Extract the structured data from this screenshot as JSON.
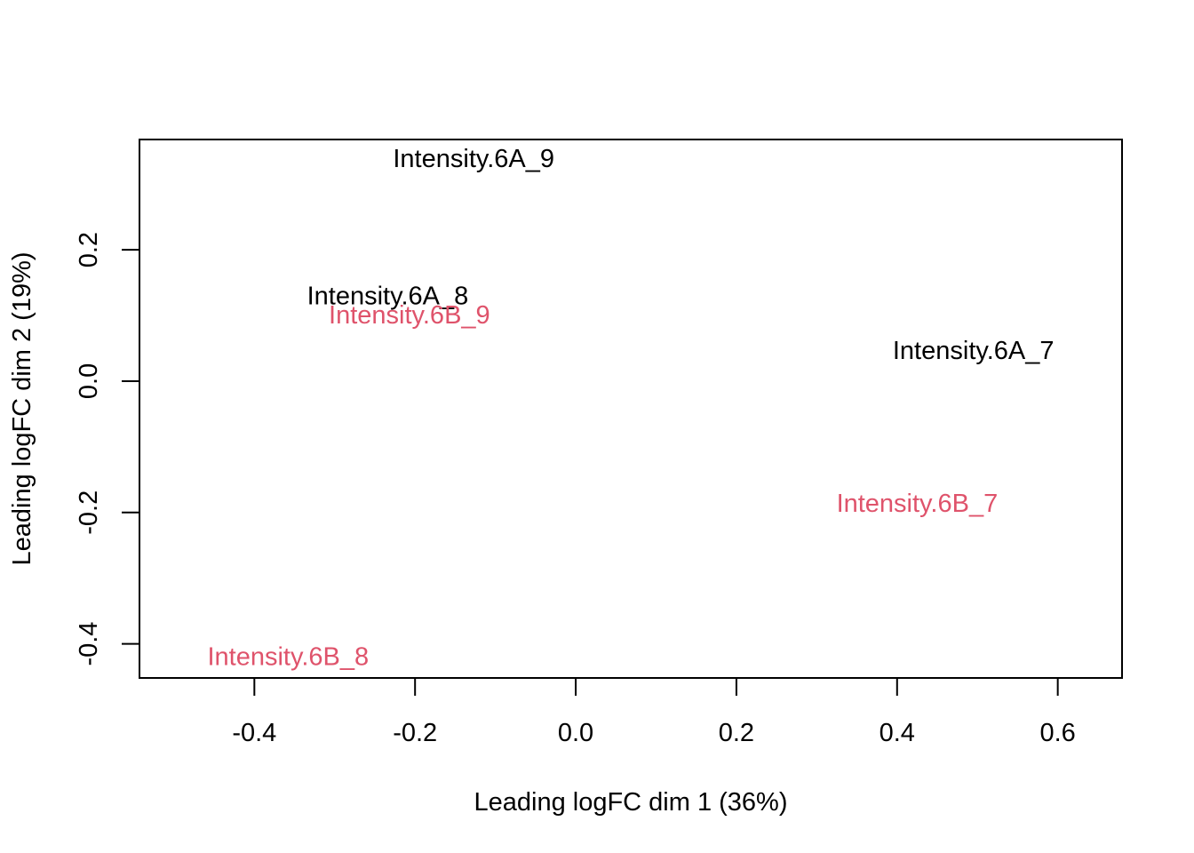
{
  "chart_data": {
    "type": "scatter",
    "title": "",
    "xlabel": "Leading logFC dim 1 (36%)",
    "ylabel": "Leading logFC dim 2 (19%)",
    "xlim": [
      -0.543,
      0.68
    ],
    "ylim": [
      -0.452,
      0.368
    ],
    "xticks": [
      -0.4,
      -0.2,
      0.0,
      0.2,
      0.4,
      0.6
    ],
    "xtick_labels": [
      "-0.4",
      "-0.2",
      "0.0",
      "0.2",
      "0.4",
      "0.6"
    ],
    "yticks": [
      -0.4,
      -0.2,
      0.0,
      0.2
    ],
    "ytick_labels": [
      "-0.4",
      "-0.2",
      "0.0",
      "0.2"
    ],
    "grid": false,
    "legend": "none",
    "colors": {
      "group_6A": "#000000",
      "group_6B": "#DF536B"
    },
    "points": [
      {
        "label": "Intensity.6A_9",
        "x": -0.127,
        "y": 0.338,
        "color": "#000000"
      },
      {
        "label": "Intensity.6A_8",
        "x": -0.234,
        "y": 0.129,
        "color": "#000000"
      },
      {
        "label": "Intensity.6B_9",
        "x": -0.207,
        "y": 0.1,
        "color": "#DF536B"
      },
      {
        "label": "Intensity.6A_7",
        "x": 0.495,
        "y": 0.046,
        "color": "#000000"
      },
      {
        "label": "Intensity.6B_7",
        "x": 0.425,
        "y": -0.187,
        "color": "#DF536B"
      },
      {
        "label": "Intensity.6B_8",
        "x": -0.358,
        "y": -0.42,
        "color": "#DF536B"
      }
    ]
  }
}
